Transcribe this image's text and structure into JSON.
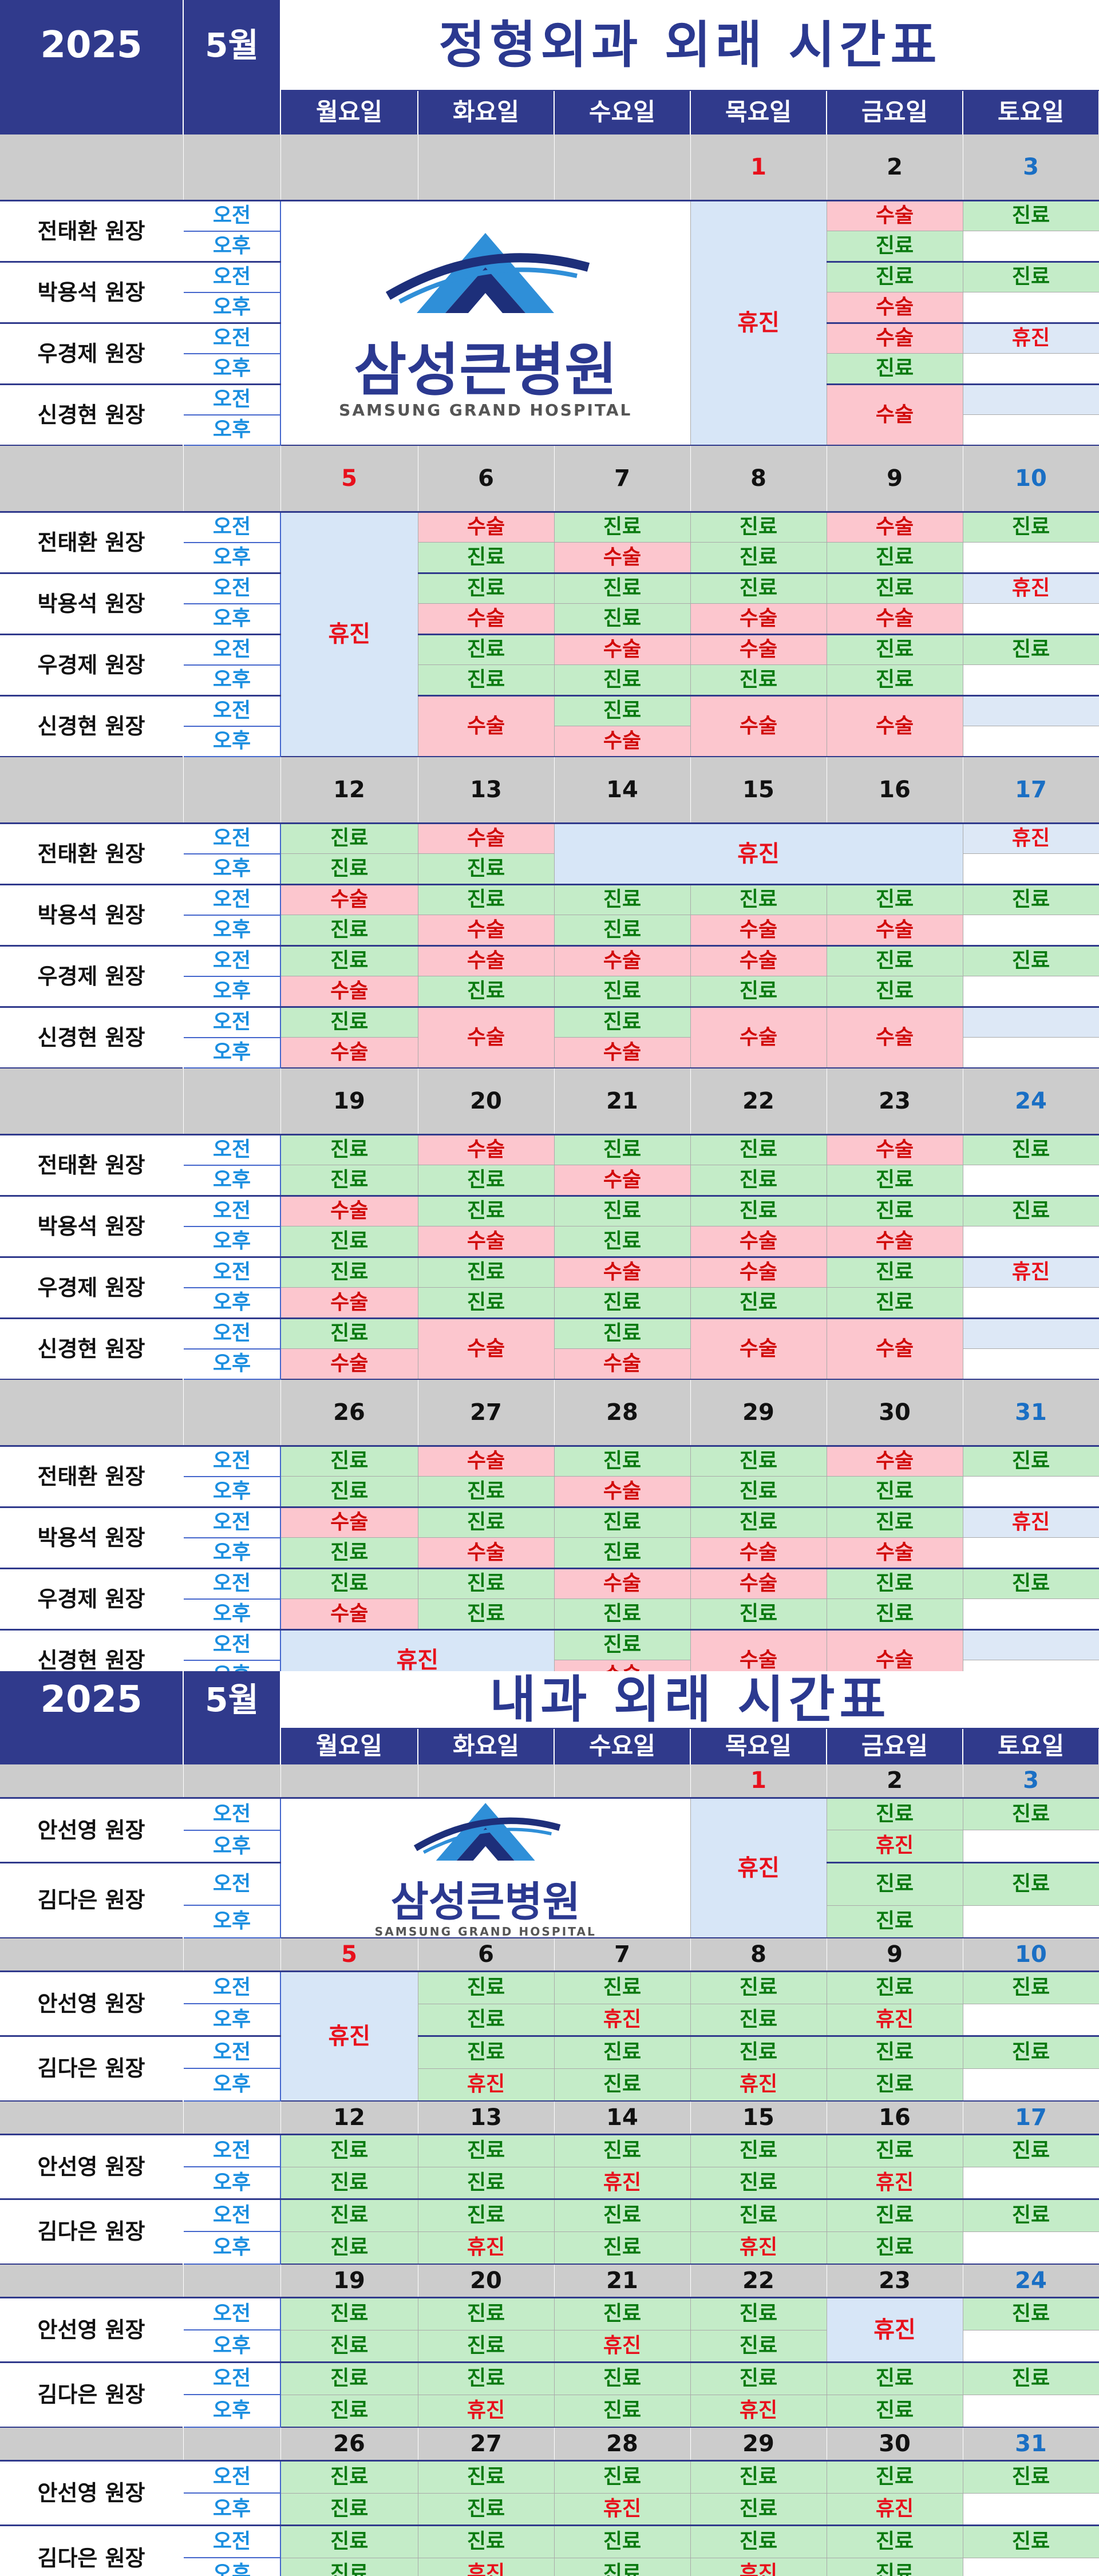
{
  "ortho": {
    "year": "2025",
    "month": "5월",
    "title": "정형외과 외래 시간표",
    "days": [
      "월요일",
      "화요일",
      "수요일",
      "목요일",
      "금요일",
      "토요일"
    ],
    "doctors": [
      "전태환 원장",
      "박용석 원장",
      "우경제 원장",
      "신경현 원장"
    ],
    "am": "오전",
    "pm": "오후",
    "weeks": [
      {
        "dates": [
          "",
          "",
          "",
          "1",
          "2",
          "3"
        ],
        "holidayCol": 3,
        "rows": [
          [
            "",
            "",
            "",
            "",
            "수술",
            "진료"
          ],
          [
            "",
            "",
            "",
            "",
            "진료",
            ""
          ],
          [
            "",
            "",
            "",
            "",
            "진료",
            "진료"
          ],
          [
            "",
            "",
            "",
            "",
            "수술",
            ""
          ],
          [
            "",
            "",
            "",
            "",
            "수술",
            "휴진"
          ],
          [
            "",
            "",
            "",
            "",
            "진료",
            ""
          ],
          [
            "",
            "",
            "",
            "",
            "수술",
            ""
          ],
          [
            "",
            "",
            "",
            "",
            "수술",
            ""
          ]
        ]
      },
      {
        "dates": [
          "5",
          "6",
          "7",
          "8",
          "9",
          "10"
        ],
        "holidayCol": 0,
        "rows": [
          [
            "",
            "수술",
            "진료",
            "진료",
            "수술",
            "진료"
          ],
          [
            "",
            "진료",
            "수술",
            "진료",
            "진료",
            ""
          ],
          [
            "",
            "진료",
            "진료",
            "진료",
            "진료",
            "휴진"
          ],
          [
            "",
            "수술",
            "진료",
            "수술",
            "수술",
            ""
          ],
          [
            "",
            "진료",
            "수술",
            "수술",
            "진료",
            "진료"
          ],
          [
            "",
            "진료",
            "진료",
            "진료",
            "진료",
            ""
          ],
          [
            "",
            "수술",
            "진료",
            "수술",
            "수술",
            ""
          ],
          [
            "",
            "수술",
            "수술",
            "수술",
            "수술",
            ""
          ]
        ]
      },
      {
        "dates": [
          "12",
          "13",
          "14",
          "15",
          "16",
          "17"
        ],
        "holidayCol": -1,
        "rows": [
          [
            "진료",
            "수술",
            "",
            "",
            "",
            "휴진"
          ],
          [
            "진료",
            "진료",
            "",
            "",
            "",
            ""
          ],
          [
            "수술",
            "진료",
            "진료",
            "진료",
            "진료",
            "진료"
          ],
          [
            "진료",
            "수술",
            "진료",
            "수술",
            "수술",
            ""
          ],
          [
            "진료",
            "수술",
            "수술",
            "수술",
            "진료",
            "진료"
          ],
          [
            "수술",
            "진료",
            "진료",
            "진료",
            "진료",
            ""
          ],
          [
            "진료",
            "수술",
            "진료",
            "수술",
            "수술",
            ""
          ],
          [
            "수술",
            "수술",
            "수술",
            "수술",
            "수술",
            ""
          ]
        ]
      },
      {
        "dates": [
          "19",
          "20",
          "21",
          "22",
          "23",
          "24"
        ],
        "holidayCol": -1,
        "rows": [
          [
            "진료",
            "수술",
            "진료",
            "진료",
            "수술",
            "진료"
          ],
          [
            "진료",
            "진료",
            "수술",
            "진료",
            "진료",
            ""
          ],
          [
            "수술",
            "진료",
            "진료",
            "진료",
            "진료",
            "진료"
          ],
          [
            "진료",
            "수술",
            "진료",
            "수술",
            "수술",
            ""
          ],
          [
            "진료",
            "진료",
            "수술",
            "수술",
            "진료",
            "휴진"
          ],
          [
            "수술",
            "진료",
            "진료",
            "진료",
            "진료",
            ""
          ],
          [
            "진료",
            "수술",
            "진료",
            "수술",
            "수술",
            ""
          ],
          [
            "수술",
            "수술",
            "수술",
            "수술",
            "수술",
            ""
          ]
        ]
      },
      {
        "dates": [
          "26",
          "27",
          "28",
          "29",
          "30",
          "31"
        ],
        "holidayCol": -1,
        "rows": [
          [
            "진료",
            "수술",
            "진료",
            "진료",
            "수술",
            "진료"
          ],
          [
            "진료",
            "진료",
            "수술",
            "진료",
            "진료",
            ""
          ],
          [
            "수술",
            "진료",
            "진료",
            "진료",
            "진료",
            "휴진"
          ],
          [
            "진료",
            "수술",
            "진료",
            "수술",
            "수술",
            ""
          ],
          [
            "진료",
            "진료",
            "수술",
            "수술",
            "진료",
            "진료"
          ],
          [
            "수술",
            "진료",
            "진료",
            "진료",
            "진료",
            ""
          ],
          [
            "",
            "",
            "진료",
            "수술",
            "수술",
            ""
          ],
          [
            "",
            "",
            "수술",
            "수술",
            "수술",
            ""
          ]
        ]
      }
    ],
    "holiday_label": "휴진"
  },
  "internal": {
    "year": "2025",
    "month": "5월",
    "title": "내과 외래 시간표",
    "days": [
      "월요일",
      "화요일",
      "수요일",
      "목요일",
      "금요일",
      "토요일"
    ],
    "doctors": [
      "안선영 원장",
      "김다은 원장"
    ],
    "am": "오전",
    "pm": "오후",
    "weeks": [
      {
        "dates": [
          "",
          "",
          "",
          "1",
          "2",
          "3"
        ],
        "rows": [
          [
            "",
            "",
            "",
            "",
            "진료",
            "진료"
          ],
          [
            "",
            "",
            "",
            "",
            "휴진",
            ""
          ],
          [
            "",
            "",
            "",
            "",
            "진료",
            "진료"
          ],
          [
            "",
            "",
            "",
            "",
            "진료",
            ""
          ]
        ]
      },
      {
        "dates": [
          "5",
          "6",
          "7",
          "8",
          "9",
          "10"
        ],
        "rows": [
          [
            "",
            "진료",
            "진료",
            "진료",
            "진료",
            "진료"
          ],
          [
            "",
            "진료",
            "휴진",
            "진료",
            "휴진",
            ""
          ],
          [
            "",
            "진료",
            "진료",
            "진료",
            "진료",
            "진료"
          ],
          [
            "",
            "휴진",
            "진료",
            "휴진",
            "진료",
            ""
          ]
        ]
      },
      {
        "dates": [
          "12",
          "13",
          "14",
          "15",
          "16",
          "17"
        ],
        "rows": [
          [
            "진료",
            "진료",
            "진료",
            "진료",
            "진료",
            "진료"
          ],
          [
            "진료",
            "진료",
            "휴진",
            "진료",
            "휴진",
            ""
          ],
          [
            "진료",
            "진료",
            "진료",
            "진료",
            "진료",
            "진료"
          ],
          [
            "진료",
            "휴진",
            "진료",
            "휴진",
            "진료",
            ""
          ]
        ]
      },
      {
        "dates": [
          "19",
          "20",
          "21",
          "22",
          "23",
          "24"
        ],
        "rows": [
          [
            "진료",
            "진료",
            "진료",
            "진료",
            "",
            "진료"
          ],
          [
            "진료",
            "진료",
            "휴진",
            "진료",
            "",
            ""
          ],
          [
            "진료",
            "진료",
            "진료",
            "진료",
            "진료",
            "진료"
          ],
          [
            "진료",
            "휴진",
            "진료",
            "휴진",
            "진료",
            ""
          ]
        ]
      },
      {
        "dates": [
          "26",
          "27",
          "28",
          "29",
          "30",
          "31"
        ],
        "rows": [
          [
            "진료",
            "진료",
            "진료",
            "진료",
            "진료",
            "진료"
          ],
          [
            "진료",
            "진료",
            "휴진",
            "진료",
            "휴진",
            ""
          ],
          [
            "진료",
            "진료",
            "진료",
            "진료",
            "진료",
            "진료"
          ],
          [
            "진료",
            "휴진",
            "진료",
            "휴진",
            "진료",
            ""
          ]
        ]
      }
    ],
    "holiday_label": "휴진"
  },
  "logo": {
    "name": "삼성큰병원",
    "sub": "SAMSUNG GRAND HOSPITAL"
  },
  "colors": {
    "navy": "#303a8c",
    "surgery_bg": "#fcc6ce",
    "clinic_bg": "#c4ecc8",
    "off_bg": "#d7e6f7"
  }
}
